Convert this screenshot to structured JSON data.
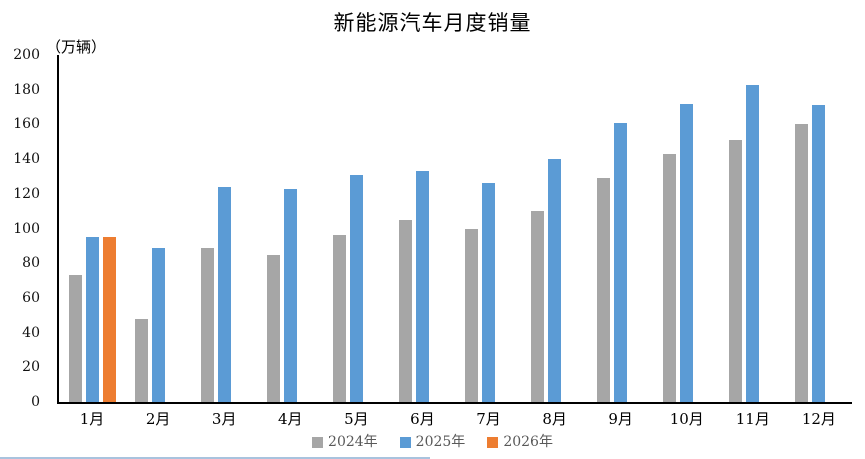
{
  "title": "新能源汽车月度销量",
  "y_axis_unit": "（万辆）",
  "colors": {
    "series_2024": "#A6A6A6",
    "series_2025": "#5B9BD5",
    "series_2026": "#ED7D31",
    "axis_line": "#000000",
    "tick_text": "#111111",
    "legend_text": "#595959",
    "footer_line": "#A9C3DE"
  },
  "chart_data": {
    "type": "bar",
    "title": "新能源汽车月度销量",
    "xlabel": "",
    "ylabel": "（万辆）",
    "categories": [
      "1月",
      "2月",
      "3月",
      "4月",
      "5月",
      "6月",
      "7月",
      "8月",
      "9月",
      "10月",
      "11月",
      "12月"
    ],
    "series": [
      {
        "name": "2024年",
        "color": "#A6A6A6",
        "values": [
          73,
          48,
          89,
          85,
          96,
          105,
          100,
          110,
          129,
          143,
          151,
          160
        ]
      },
      {
        "name": "2025年",
        "color": "#5B9BD5",
        "values": [
          95,
          89,
          124,
          123,
          131,
          133,
          126,
          140,
          161,
          172,
          183,
          171
        ]
      },
      {
        "name": "2026年",
        "color": "#ED7D31",
        "values": [
          95,
          null,
          null,
          null,
          null,
          null,
          null,
          null,
          null,
          null,
          null,
          null
        ]
      }
    ],
    "ylim": [
      0,
      200
    ],
    "yticks": [
      0,
      20,
      40,
      60,
      80,
      100,
      120,
      140,
      160,
      180,
      200
    ],
    "grid": false,
    "legend_position": "bottom"
  }
}
